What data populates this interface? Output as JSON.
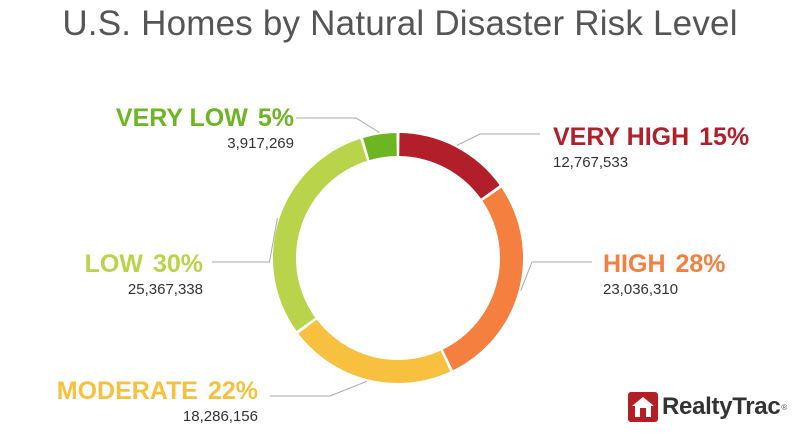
{
  "title": "U.S. Homes by Natural Disaster Risk Level",
  "brand": {
    "name": "RealtyTrac",
    "reg": "®",
    "color": "#b21f24"
  },
  "chart_data": {
    "type": "pie",
    "title": "U.S. Homes by Natural Disaster Risk Level",
    "donut": true,
    "slices": [
      {
        "label": "VERY HIGH",
        "percent": "15%",
        "value": 12767533,
        "count": "12,767,533",
        "color": "#b21f2b"
      },
      {
        "label": "HIGH",
        "percent": "28%",
        "value": 23036310,
        "count": "23,036,310",
        "color": "#f47f3f"
      },
      {
        "label": "MODERATE",
        "percent": "22%",
        "value": 18286156,
        "count": "18,286,156",
        "color": "#f7c13f"
      },
      {
        "label": "LOW",
        "percent": "30%",
        "value": 25367338,
        "count": "25,367,338",
        "color": "#b9d44a"
      },
      {
        "label": "VERY LOW",
        "percent": "5%",
        "value": 3917269,
        "count": "3,917,269",
        "color": "#6db523"
      }
    ]
  }
}
